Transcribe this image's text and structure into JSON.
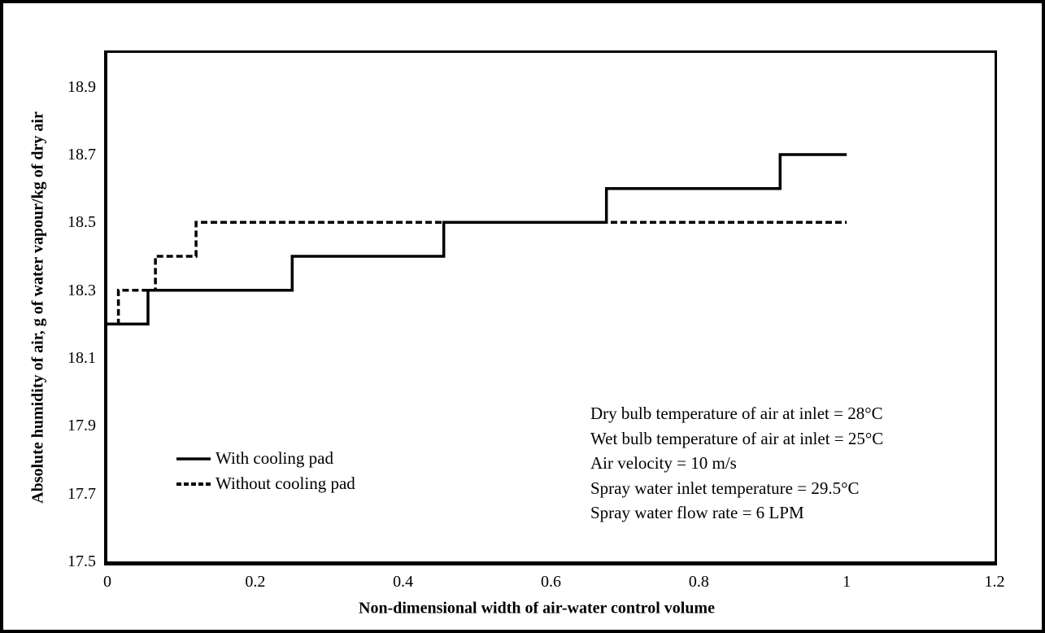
{
  "chart_data": {
    "type": "line",
    "subtype": "step",
    "title": "",
    "xlabel": "Non-dimensional width of air-water control volume",
    "ylabel": "Absolute humidity of air, g of water vapour/kg of dry air",
    "xlim": [
      0,
      1.2
    ],
    "ylim": [
      17.5,
      19.0
    ],
    "x_ticks": [
      0,
      0.2,
      0.4,
      0.6,
      0.8,
      1,
      1.2
    ],
    "x_tick_labels": [
      "0",
      "0.2",
      "0.4",
      "0.6",
      "0.8",
      "1",
      "1.2"
    ],
    "y_ticks": [
      17.5,
      17.7,
      17.9,
      18.1,
      18.3,
      18.5,
      18.7,
      18.9
    ],
    "y_tick_labels": [
      "17.5",
      "17.7",
      "17.9",
      "18.1",
      "18.3",
      "18.5",
      "18.7",
      "18.9"
    ],
    "grid": false,
    "legend_position": "inside lower-left",
    "line_color": "#000000",
    "series": [
      {
        "name": "With cooling pad",
        "style": "solid",
        "color": "#000000",
        "points": [
          [
            0,
            18.2
          ],
          [
            0.055,
            18.2
          ],
          [
            0.055,
            18.3
          ],
          [
            0.25,
            18.3
          ],
          [
            0.25,
            18.4
          ],
          [
            0.455,
            18.4
          ],
          [
            0.455,
            18.5
          ],
          [
            0.675,
            18.5
          ],
          [
            0.675,
            18.6
          ],
          [
            0.91,
            18.6
          ],
          [
            0.91,
            18.7
          ],
          [
            1.0,
            18.7
          ]
        ]
      },
      {
        "name": "Without cooling pad",
        "style": "dashed",
        "color": "#000000",
        "points": [
          [
            0,
            18.2
          ],
          [
            0.015,
            18.2
          ],
          [
            0.015,
            18.3
          ],
          [
            0.065,
            18.3
          ],
          [
            0.065,
            18.4
          ],
          [
            0.12,
            18.4
          ],
          [
            0.12,
            18.5
          ],
          [
            1.0,
            18.5
          ]
        ]
      }
    ],
    "annotation": {
      "lines": [
        "Dry bulb temperature of air at inlet = 28°C",
        "Wet bulb temperature of air at inlet = 25°C",
        "Air velocity = 10 m/s",
        "Spray water inlet temperature = 29.5°C",
        "Spray water flow rate = 6 LPM"
      ]
    }
  }
}
